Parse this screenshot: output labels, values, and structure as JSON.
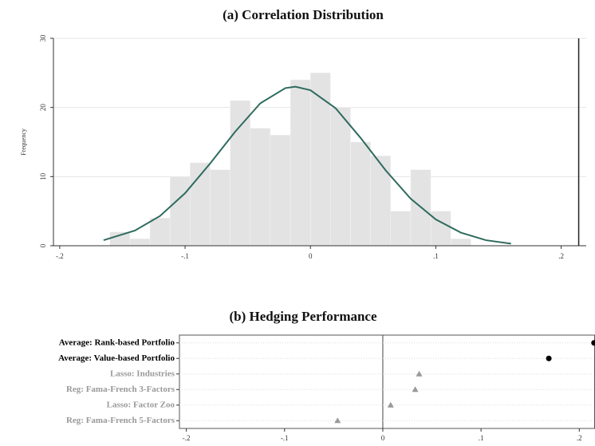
{
  "chart_data": [
    {
      "type": "histogram",
      "title": "(a) Correlation Distribution",
      "y_label": "Frequency",
      "bins": [
        -0.16,
        -0.144,
        -0.128,
        -0.112,
        -0.096,
        -0.08,
        -0.064,
        -0.048,
        -0.032,
        -0.016,
        0,
        0.016,
        0.032,
        0.048,
        0.064,
        0.08,
        0.096,
        0.112,
        0.128
      ],
      "values": [
        2,
        1,
        4,
        10,
        12,
        11,
        21,
        17,
        16,
        24,
        25,
        20,
        15,
        13,
        5,
        11,
        5,
        1
      ],
      "color": "#e3e3e3",
      "curve": {
        "x": [
          -0.165,
          -0.14,
          -0.12,
          -0.1,
          -0.08,
          -0.06,
          -0.04,
          -0.02,
          -0.012,
          0,
          0.02,
          0.04,
          0.06,
          0.08,
          0.1,
          0.12,
          0.14,
          0.16
        ],
        "values": [
          0.8,
          2.2,
          4.3,
          7.6,
          11.9,
          16.5,
          20.6,
          22.8,
          23,
          22.5,
          19.9,
          15.6,
          10.9,
          6.8,
          3.8,
          1.9,
          0.8,
          0.3
        ],
        "color": "#2e6b5e"
      },
      "vline": 0.214,
      "xlim": [
        -0.205,
        0.22
      ],
      "xticks": [
        {
          "value": -0.2,
          "label": "-.2"
        },
        {
          "value": -0.1,
          "label": "-.1"
        },
        0,
        {
          "value": 0.1,
          "label": ".1"
        },
        {
          "value": 0.2,
          "label": ".2"
        }
      ],
      "ylim": [
        0,
        30
      ],
      "yticks": [
        0,
        10,
        20,
        30
      ],
      "grid": true
    },
    {
      "type": "dot",
      "title": "(b) Hedging Performance",
      "categories": [
        "Average: Rank-based Portfolio",
        "Average: Value-based Portfolio",
        "Lasso: Industries",
        "Reg: Fama-French 3-Factors",
        "Lasso: Factor Zoo",
        "Reg: Fama-French 5-Factors"
      ],
      "values": [
        0.215,
        0.169,
        0.037,
        0.033,
        0.008,
        -0.046
      ],
      "colors": [
        "#000000",
        "#000000",
        "#999999",
        "#999999",
        "#999999",
        "#999999"
      ],
      "markers": [
        "circle",
        "circle",
        "triangle",
        "triangle",
        "triangle",
        "triangle"
      ],
      "vline": 0,
      "xlim": [
        -0.207,
        0.216
      ],
      "xticks": [
        {
          "value": -0.2,
          "label": "-.2"
        },
        {
          "value": -0.1,
          "label": "-.1"
        },
        0,
        {
          "value": 0.1,
          "label": ".1"
        },
        {
          "value": 0.2,
          "label": ".2"
        }
      ],
      "grid": true
    }
  ]
}
